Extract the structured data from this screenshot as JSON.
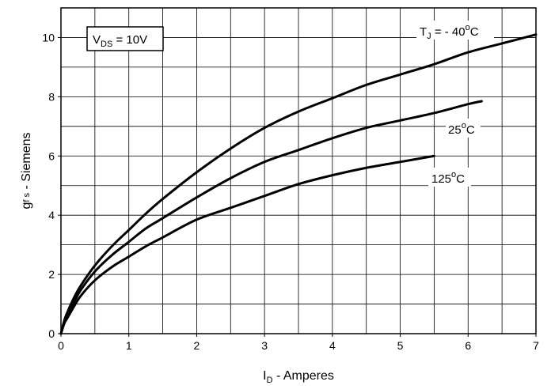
{
  "chart_data": {
    "type": "line",
    "title": "",
    "xlabel": {
      "main": "I",
      "sub": "D",
      "rest": " - Amperes"
    },
    "ylabel": {
      "main": "g",
      "sub": "f s",
      "rest": " - Siemens"
    },
    "xlim": [
      0,
      7
    ],
    "ylim": [
      0,
      11
    ],
    "xticks": [
      0,
      1,
      2,
      3,
      4,
      5,
      6,
      7
    ],
    "yticks": [
      0,
      2,
      4,
      6,
      8,
      10
    ],
    "x_minor_step": 0.5,
    "y_minor_step": 1,
    "grid": true,
    "condition_box": {
      "main": "V",
      "sub": "DS",
      "rest": " = 10V"
    },
    "series": [
      {
        "label": {
          "pre": "T",
          "sub": "J",
          "mid": " = - 40",
          "sup": "o",
          "post": "C"
        },
        "x": [
          0,
          0.05,
          0.1,
          0.2,
          0.3,
          0.5,
          0.75,
          1.0,
          1.25,
          1.5,
          2.0,
          2.5,
          3.0,
          3.5,
          4.0,
          4.5,
          5.0,
          5.5,
          6.0,
          6.5,
          7.0
        ],
        "y": [
          0,
          0.45,
          0.75,
          1.25,
          1.65,
          2.3,
          2.95,
          3.5,
          4.05,
          4.55,
          5.45,
          6.25,
          6.95,
          7.5,
          7.95,
          8.4,
          8.75,
          9.1,
          9.5,
          9.8,
          10.1
        ]
      },
      {
        "label": {
          "pre": "",
          "sub": "",
          "mid": "25",
          "sup": "o",
          "post": "C"
        },
        "x": [
          0,
          0.05,
          0.1,
          0.2,
          0.3,
          0.5,
          0.75,
          1.0,
          1.25,
          1.5,
          2.0,
          2.5,
          3.0,
          3.5,
          4.0,
          4.5,
          5.0,
          5.5,
          6.0,
          6.2
        ],
        "y": [
          0,
          0.4,
          0.65,
          1.1,
          1.5,
          2.1,
          2.65,
          3.1,
          3.55,
          3.9,
          4.6,
          5.25,
          5.8,
          6.2,
          6.6,
          6.95,
          7.2,
          7.45,
          7.75,
          7.85
        ]
      },
      {
        "label": {
          "pre": "",
          "sub": "",
          "mid": "125",
          "sup": "o",
          "post": "C"
        },
        "x": [
          0,
          0.05,
          0.1,
          0.2,
          0.3,
          0.5,
          0.75,
          1.0,
          1.25,
          1.5,
          2.0,
          2.5,
          3.0,
          3.5,
          4.0,
          4.5,
          5.0,
          5.5
        ],
        "y": [
          0,
          0.35,
          0.55,
          0.95,
          1.3,
          1.8,
          2.25,
          2.6,
          2.95,
          3.25,
          3.85,
          4.25,
          4.65,
          5.05,
          5.35,
          5.6,
          5.8,
          6.0
        ]
      }
    ]
  }
}
